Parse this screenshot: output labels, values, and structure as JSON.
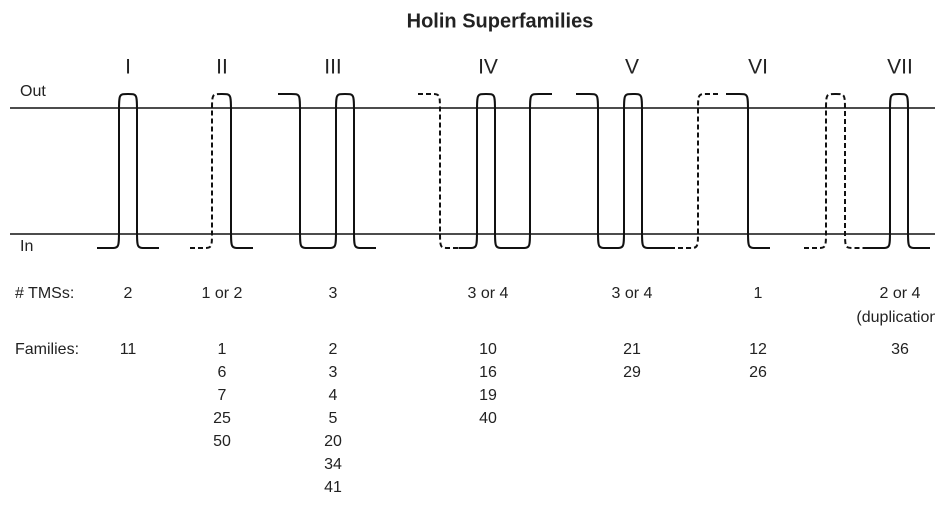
{
  "title": "Holin Superfamilies",
  "membrane": {
    "out": "Out",
    "in": "In"
  },
  "row_labels": {
    "tms": "# TMSs:",
    "families": "Families:"
  },
  "superfamilies": [
    {
      "numeral": "I",
      "tms": "2",
      "families": [
        11
      ]
    },
    {
      "numeral": "II",
      "tms": "1 or 2",
      "families": [
        1,
        6,
        7,
        25,
        50
      ]
    },
    {
      "numeral": "III",
      "tms": "3",
      "families": [
        2,
        3,
        4,
        5,
        20,
        34,
        41
      ]
    },
    {
      "numeral": "IV",
      "tms": "3 or 4",
      "families": [
        10,
        16,
        19,
        40
      ]
    },
    {
      "numeral": "V",
      "tms": "3 or 4",
      "families": [
        21,
        29
      ]
    },
    {
      "numeral": "VI",
      "tms": "1",
      "families": [
        12,
        26
      ]
    },
    {
      "numeral": "VII",
      "tms": "2 or 4",
      "note": "(duplication)",
      "families": [
        36
      ]
    }
  ]
}
